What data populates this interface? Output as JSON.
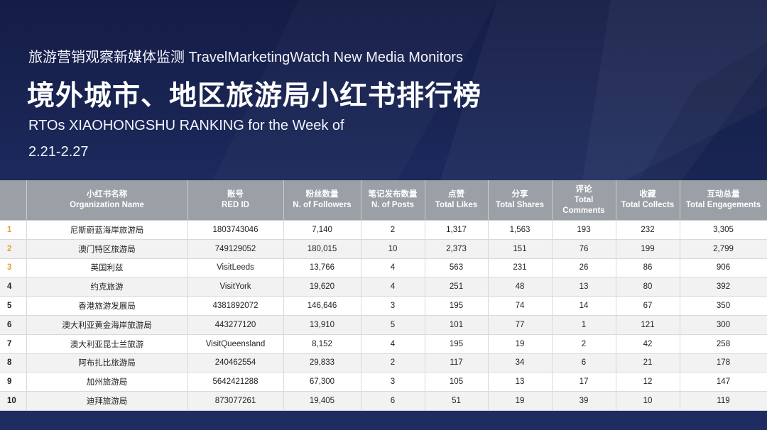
{
  "header": {
    "subtitle": "旅游营销观察新媒体监测 TravelMarketingWatch New Media Monitors",
    "title": "境外城市、地区旅游局小红书排行榜",
    "english_line1": "RTOs XIAOHONGSHU RANKING for the Week of",
    "english_line2": "2.21-2.27"
  },
  "table": {
    "columns": [
      {
        "cn": "",
        "en": ""
      },
      {
        "cn": "小红书名称",
        "en": "Organization Name"
      },
      {
        "cn": "账号",
        "en": "RED ID"
      },
      {
        "cn": "粉丝数量",
        "en": "N. of Followers"
      },
      {
        "cn": "笔记发布数量",
        "en": "N. of Posts"
      },
      {
        "cn": "点赞",
        "en": "Total Likes"
      },
      {
        "cn": "分享",
        "en": "Total Shares"
      },
      {
        "cn": "评论",
        "en": "Total Comments"
      },
      {
        "cn": "收藏",
        "en": "Total Collects"
      },
      {
        "cn": "互动总量",
        "en": "Total Engagements"
      }
    ],
    "rows": [
      [
        "1",
        "尼斯蔚蓝海岸旅游局",
        "1803743046",
        "7,140",
        "2",
        "1,317",
        "1,563",
        "193",
        "232",
        "3,305"
      ],
      [
        "2",
        "澳门特区旅游局",
        "749129052",
        "180,015",
        "10",
        "2,373",
        "151",
        "76",
        "199",
        "2,799"
      ],
      [
        "3",
        "英国利兹",
        "VisitLeeds",
        "13,766",
        "4",
        "563",
        "231",
        "26",
        "86",
        "906"
      ],
      [
        "4",
        "约克旅游",
        "VisitYork",
        "19,620",
        "4",
        "251",
        "48",
        "13",
        "80",
        "392"
      ],
      [
        "5",
        "香港旅游发展局",
        "4381892072",
        "146,646",
        "3",
        "195",
        "74",
        "14",
        "67",
        "350"
      ],
      [
        "6",
        "澳大利亚黄金海岸旅游局",
        "443277120",
        "13,910",
        "5",
        "101",
        "77",
        "1",
        "121",
        "300"
      ],
      [
        "7",
        "澳大利亚昆士兰旅游",
        "VisitQueensland",
        "8,152",
        "4",
        "195",
        "19",
        "2",
        "42",
        "258"
      ],
      [
        "8",
        "阿布扎比旅游局",
        "240462554",
        "29,833",
        "2",
        "117",
        "34",
        "6",
        "21",
        "178"
      ],
      [
        "9",
        "加州旅游局",
        "5642421288",
        "67,300",
        "3",
        "105",
        "13",
        "17",
        "12",
        "147"
      ],
      [
        "10",
        "迪拜旅游局",
        "873077261",
        "19,405",
        "6",
        "51",
        "19",
        "39",
        "10",
        "119"
      ]
    ],
    "highlight_color": "#e3a13a"
  }
}
